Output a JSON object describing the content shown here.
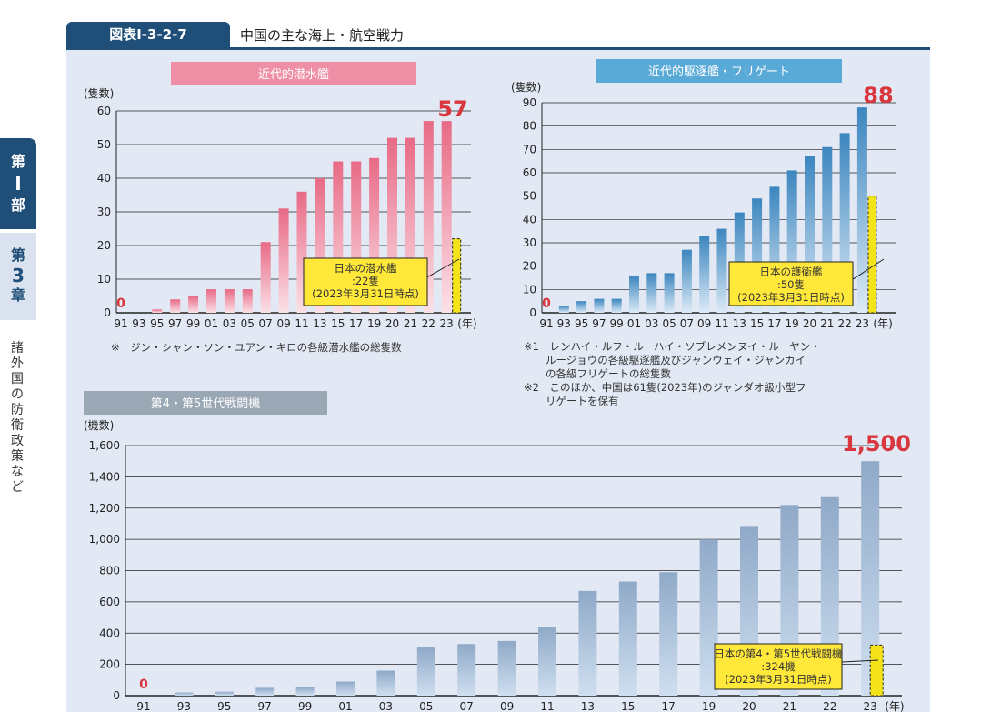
{
  "header": {
    "figure_id": "図表Ⅰ-3-2-7",
    "title": "中国の主な海上・航空戦力"
  },
  "side_tab": {
    "part": [
      "第",
      "Ⅰ",
      "部"
    ],
    "chapter": [
      "第",
      "3",
      "章"
    ],
    "section": [
      "諸",
      "外",
      "国",
      "の",
      "防",
      "衛",
      "政",
      "策",
      "な",
      "ど"
    ]
  },
  "colors": {
    "navy": "#1f4e79",
    "submarine_bar": "#ef8fa6",
    "destroyer_bar": "#4a95c9",
    "japan_bar": "#f5e31a",
    "callout_bg": "#ffe83a",
    "highlight_red": "#d9363e"
  },
  "chart_data": [
    {
      "type": "bar",
      "title": "近代的潜水艦",
      "ylabel": "(隻数)",
      "xunit": "(年)",
      "ylim": [
        0,
        60
      ],
      "yticks": [
        0,
        10,
        20,
        30,
        40,
        50,
        60
      ],
      "categories": [
        "91",
        "93",
        "95",
        "97",
        "99",
        "01",
        "03",
        "05",
        "07",
        "09",
        "11",
        "13",
        "15",
        "17",
        "19",
        "20",
        "21",
        "22",
        "23"
      ],
      "series": [
        {
          "values": [
            0,
            0,
            1,
            4,
            5,
            7,
            7,
            7,
            21,
            31,
            36,
            40,
            45,
            45,
            46,
            52,
            52,
            57,
            57
          ]
        }
      ],
      "highlight_start": "0",
      "highlight_end": "57",
      "japan_value": 22,
      "callout": {
        "line1": "日本の潜水艦",
        "line2": ":22隻",
        "line3": "(2023年3月31日時点)"
      },
      "notes": [
        "※　ジン・シャン・ソン・ユアン・キロの各級潜水艦の総隻数"
      ]
    },
    {
      "type": "bar",
      "title": "近代的駆逐艦・フリゲート",
      "ylabel": "(隻数)",
      "xunit": "(年)",
      "ylim": [
        0,
        90
      ],
      "yticks": [
        0,
        10,
        20,
        30,
        40,
        50,
        60,
        70,
        80,
        90
      ],
      "categories": [
        "91",
        "93",
        "95",
        "97",
        "99",
        "01",
        "03",
        "05",
        "07",
        "09",
        "11",
        "13",
        "15",
        "17",
        "19",
        "20",
        "21",
        "22",
        "23"
      ],
      "series": [
        {
          "values": [
            0,
            3,
            5,
            6,
            6,
            16,
            17,
            17,
            27,
            33,
            36,
            43,
            49,
            54,
            61,
            67,
            71,
            77,
            88
          ]
        }
      ],
      "highlight_start": "0",
      "highlight_end": "88",
      "japan_value": 50,
      "callout": {
        "line1": "日本の護衛艦",
        "line2": ":50隻",
        "line3": "(2023年3月31日時点)"
      },
      "notes": [
        "※1　レンハイ・ルフ・ルーハイ・ソブレメンヌイ・ルーヤン・",
        "ルージョウの各級駆逐艦及びジャンウェイ・ジャンカイ",
        "の各級フリゲートの総隻数",
        "※2　このほか、中国は61隻(2023年)のジャンダオ級小型フ",
        "リゲートを保有"
      ]
    },
    {
      "type": "bar",
      "title": "第4・第5世代戦闘機",
      "ylabel": "(機数)",
      "xunit": "(年)",
      "ylim": [
        0,
        1600
      ],
      "yticks": [
        "0",
        "200",
        "400",
        "600",
        "800",
        "1,000",
        "1,200",
        "1,400",
        "1,600"
      ],
      "categories": [
        "91",
        "93",
        "95",
        "97",
        "99",
        "01",
        "03",
        "05",
        "07",
        "09",
        "11",
        "13",
        "15",
        "17",
        "19",
        "20",
        "21",
        "22",
        "23"
      ],
      "series": [
        {
          "values": [
            0,
            20,
            25,
            50,
            55,
            90,
            160,
            310,
            330,
            350,
            440,
            670,
            730,
            790,
            1000,
            1080,
            1220,
            1270,
            1500
          ]
        }
      ],
      "highlight_start": "0",
      "highlight_end": "1,500",
      "japan_value": 324,
      "callout": {
        "line1": "日本の第4・第5世代戦闘機",
        "line2": ":324機",
        "line3": "(2023年3月31日時点)"
      }
    }
  ]
}
